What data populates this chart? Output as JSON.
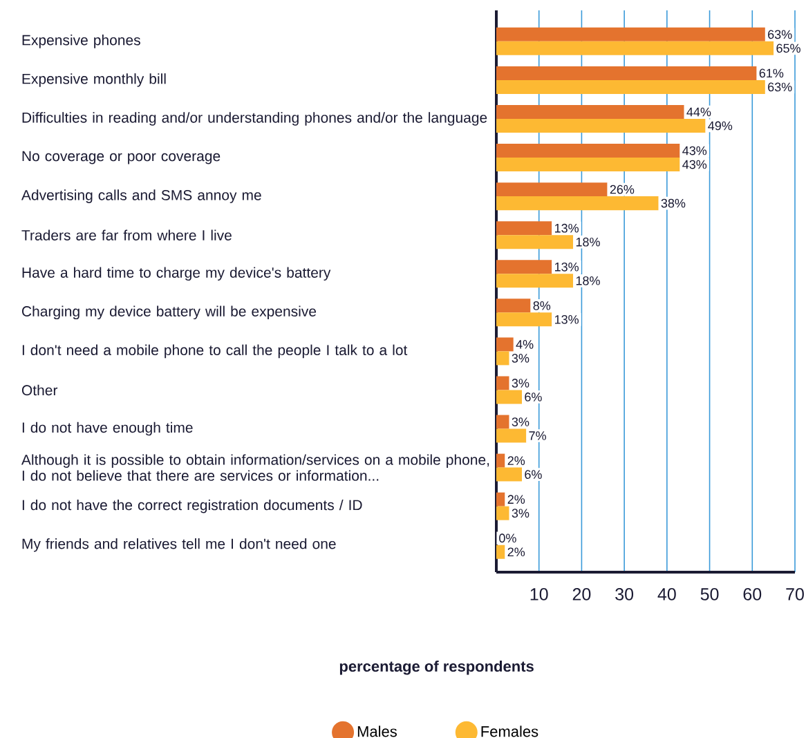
{
  "chart_data": {
    "type": "bar",
    "orientation": "horizontal",
    "xlabel": "percentage of respondents",
    "categories": [
      "Expensive phones",
      "Expensive monthly bill",
      "Difficulties in reading and/or understanding phones and/or the language",
      "No coverage or poor coverage",
      "Advertising calls and SMS annoy me",
      "Traders are far from where I live",
      "Have a hard time to charge my device's battery",
      "Charging my device battery will be expensive",
      "I don't need a mobile phone to call the people I talk to a lot",
      "Other",
      "I do not have enough time",
      "Although it is possible to obtain information/services on a mobile phone, I do not believe that there are services or information...",
      "I do not have the correct registration documents / ID",
      "My friends and relatives tell me I don't need one"
    ],
    "series": [
      {
        "name": "Males",
        "color": "#e4732e",
        "values": [
          63,
          61,
          44,
          43,
          26,
          13,
          13,
          8,
          4,
          3,
          3,
          2,
          2,
          0
        ],
        "value_labels": [
          "63%",
          "61%",
          "44%",
          "43%",
          "26%",
          "13%",
          "13%",
          "8%",
          "4%",
          "3%",
          "3%",
          "2%",
          "2%",
          "0%"
        ]
      },
      {
        "name": "Females",
        "color": "#fdb933",
        "values": [
          65,
          63,
          49,
          43,
          38,
          18,
          18,
          13,
          3,
          6,
          7,
          6,
          3,
          2
        ],
        "value_labels": [
          "65%",
          "63%",
          "49%",
          "43%",
          "38%",
          "18%",
          "18%",
          "13%",
          "3%",
          "6%",
          "7%",
          "6%",
          "3%",
          "2%"
        ]
      }
    ],
    "xlim": [
      0,
      70
    ],
    "xticks": [
      10,
      20,
      30,
      40,
      50,
      60,
      70
    ],
    "grid": "x",
    "legend": "bottom"
  }
}
